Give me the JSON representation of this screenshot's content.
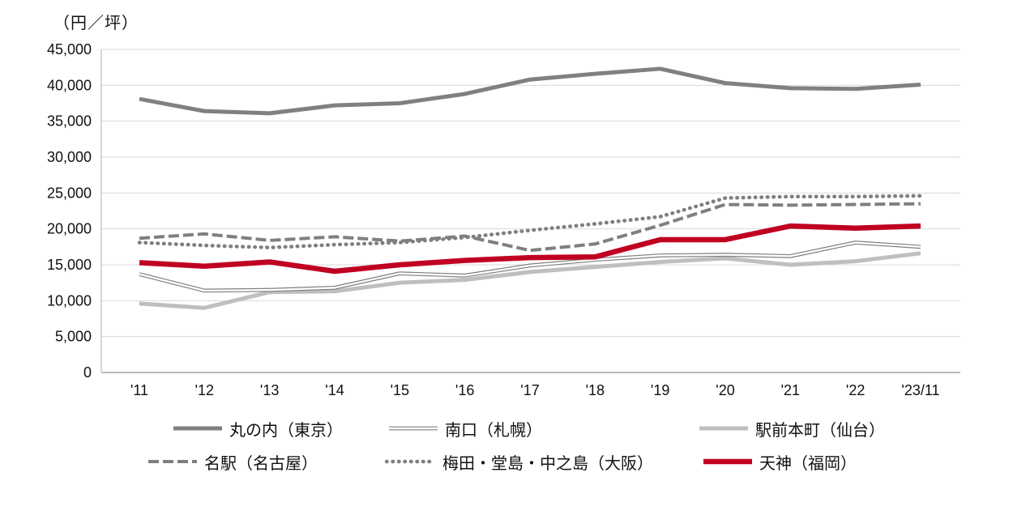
{
  "chart_data": {
    "type": "line",
    "title": "（円／坪）",
    "categories": [
      "'11",
      "'12",
      "'13",
      "'14",
      "'15",
      "'16",
      "'17",
      "'18",
      "'19",
      "'20",
      "'21",
      "'22",
      "'23/11"
    ],
    "series": [
      {
        "name": "丸の内（東京）",
        "style": "solid-dark",
        "color": "#808080",
        "values": [
          38100,
          36400,
          36100,
          37200,
          37500,
          38800,
          40800,
          41600,
          42300,
          40300,
          39600,
          39500,
          40100
        ]
      },
      {
        "name": "南口（札幌）",
        "style": "double",
        "color": "#7F7F7F",
        "values": [
          13700,
          11400,
          11500,
          11800,
          13800,
          13500,
          14900,
          15700,
          16300,
          16400,
          16200,
          18100,
          17500
        ]
      },
      {
        "name": "駅前本町（仙台）",
        "style": "solid-light",
        "color": "#BFBFBF",
        "values": [
          9600,
          9000,
          11200,
          11300,
          12500,
          12900,
          14000,
          14700,
          15400,
          15900,
          15000,
          15500,
          16600
        ]
      },
      {
        "name": "名駅（名古屋）",
        "style": "dashed",
        "color": "#7F7F7F",
        "values": [
          18700,
          19300,
          18400,
          18900,
          18300,
          19000,
          17000,
          17900,
          20500,
          23400,
          23300,
          23400,
          23500
        ]
      },
      {
        "name": "梅田・堂島・中之島（大阪）",
        "style": "dotted",
        "color": "#7F7F7F",
        "values": [
          18100,
          17700,
          17400,
          17800,
          18100,
          18800,
          19800,
          20700,
          21700,
          24300,
          24500,
          24500,
          24600
        ]
      },
      {
        "name": "天神（福岡）",
        "style": "solid-red",
        "color": "#C00020",
        "values": [
          15300,
          14800,
          15400,
          14100,
          15000,
          15600,
          16000,
          16100,
          18500,
          18500,
          20400,
          20100,
          20400
        ]
      }
    ],
    "ylim": [
      0,
      45000
    ],
    "ytick_step": 5000,
    "ytick_labels": [
      "0",
      "5,000",
      "10,000",
      "15,000",
      "20,000",
      "25,000",
      "30,000",
      "35,000",
      "40,000",
      "45,000"
    ],
    "grid": true,
    "legend_position": "bottom",
    "axis_colors": {
      "gridline": "#D9D9D9",
      "x_axis": "#A6A6A6",
      "y_axis": "#BFBFBF"
    }
  }
}
